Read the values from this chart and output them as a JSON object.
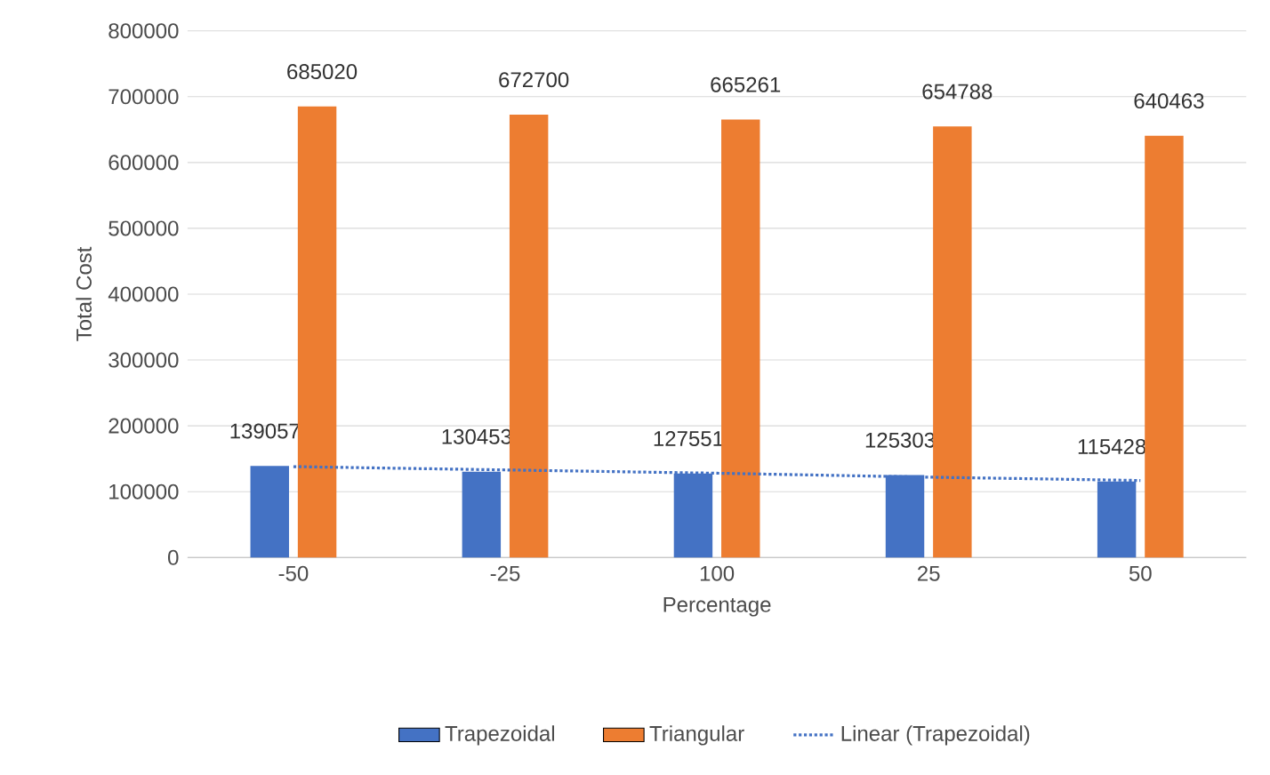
{
  "chart_data": {
    "type": "bar",
    "xlabel": "Percentage",
    "ylabel": "Total Cost",
    "categories": [
      "-50",
      "-25",
      "100",
      "25",
      "50"
    ],
    "series": [
      {
        "name": "Trapezoidal",
        "color": "#4472c4",
        "values": [
          139057,
          130453,
          127551,
          125303,
          115428
        ],
        "value_labels": [
          "139057",
          "130453",
          "127551",
          "125303",
          "115428"
        ]
      },
      {
        "name": "Triangular",
        "color": "#ed7d31",
        "values": [
          685020,
          672700,
          665261,
          654788,
          640463
        ],
        "value_labels": [
          "685020",
          "672700",
          "665261",
          "654788",
          "640463"
        ]
      },
      {
        "name": "Linear (Trapezoidal)",
        "type": "line",
        "color": "#4472c4",
        "line_style": "dotted",
        "values": [
          138000,
          133000,
          128000,
          122000,
          117000
        ]
      }
    ],
    "ylim": [
      0,
      800000
    ],
    "yticks": [
      0,
      100000,
      200000,
      300000,
      400000,
      500000,
      600000,
      700000,
      800000
    ],
    "grid": "y",
    "legend": "bottom"
  }
}
